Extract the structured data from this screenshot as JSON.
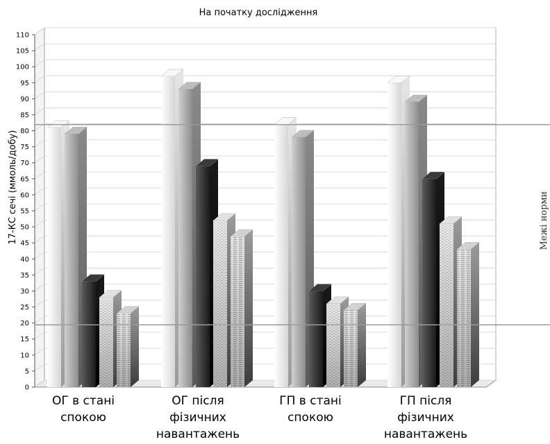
{
  "chart_data": {
    "type": "bar",
    "title": "На початку дослідження",
    "ylabel": "17-КС сечі (ммоль/добу)",
    "ylim": [
      0,
      110
    ],
    "yticks": [
      0,
      5,
      10,
      15,
      20,
      25,
      30,
      35,
      40,
      45,
      50,
      55,
      60,
      65,
      70,
      75,
      80,
      85,
      90,
      95,
      100,
      105,
      110
    ],
    "categories": [
      [
        "ОГ в стані",
        "спокою"
      ],
      [
        "ОГ після",
        "фізичних",
        "навантажень"
      ],
      [
        "ГП в стані",
        "спокою"
      ],
      [
        "ГП після",
        "фізичних",
        "навантажень"
      ]
    ],
    "series": [
      {
        "values": [
          81,
          97,
          82,
          95
        ]
      },
      {
        "values": [
          79,
          93,
          78,
          89
        ]
      },
      {
        "values": [
          33,
          69,
          30,
          65
        ]
      },
      {
        "values": [
          28,
          52,
          26,
          51
        ]
      },
      {
        "values": [
          23,
          47,
          24,
          43
        ]
      }
    ],
    "norm_lines": [
      19,
      81.5
    ],
    "norm_label": "Межі норми",
    "grid": true,
    "legend": "none"
  },
  "colors": {
    "series_light": "#f4f4f4",
    "series_gray": "#a8a8a8",
    "series_dark": "#2a2a2a",
    "series_texture": "#dcdcdc",
    "norm_line": "#9a9a9a",
    "grid": "#d8d8d8"
  }
}
